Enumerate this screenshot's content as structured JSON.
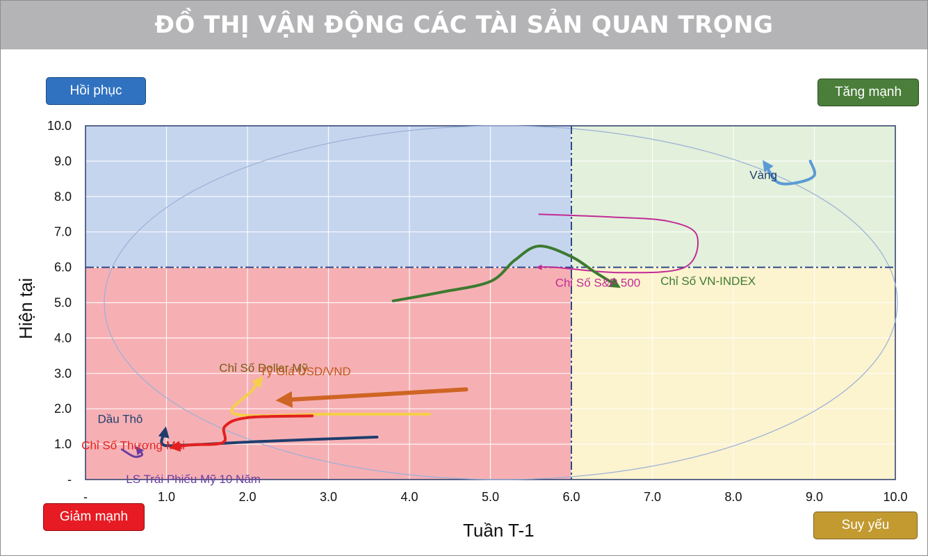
{
  "title": "ĐỒ THỊ VẬN ĐỘNG CÁC TÀI SẢN QUAN TRỌNG",
  "quadrant_labels": {
    "top_left": "Hồi phục",
    "top_right": "Tăng mạnh",
    "bottom_left": "Giảm mạnh",
    "bottom_right": "Suy yếu"
  },
  "colors": {
    "recovery": "#3072c0",
    "strong": "#4a7e3a",
    "weak_drop": "#e61b23",
    "weakening": "#c29a30",
    "q_recovery_bg": "#c6d5ee",
    "q_strong_bg": "#e3f0db",
    "q_drop_bg": "#f6b0b4",
    "q_weak_bg": "#fcf3cf"
  },
  "chart_data": {
    "type": "scatter",
    "xlabel": "Tuần T-1",
    "ylabel": "Hiện tại",
    "xlim": [
      0,
      10
    ],
    "ylim": [
      0,
      10
    ],
    "x_ticks": [
      "-",
      "1.0",
      "2.0",
      "3.0",
      "4.0",
      "5.0",
      "6.0",
      "7.0",
      "8.0",
      "9.0",
      "10.0"
    ],
    "y_ticks": [
      "-",
      "1.0",
      "2.0",
      "3.0",
      "4.0",
      "5.0",
      "6.0",
      "7.0",
      "8.0",
      "9.0",
      "10.0"
    ],
    "divider": {
      "x": 6.0,
      "y": 6.0
    },
    "grid": true,
    "series": [
      {
        "name": "Vàng",
        "color": "#5b9bd5",
        "label_pos": [
          8.2,
          8.5
        ],
        "points": [
          [
            8.95,
            9.0
          ],
          [
            9.0,
            8.6
          ],
          [
            8.8,
            8.4
          ],
          [
            8.55,
            8.4
          ],
          [
            8.4,
            8.9
          ]
        ]
      },
      {
        "name": "Chỉ Số S&P 500",
        "color": "#c02b96",
        "label_pos": [
          5.8,
          5.45
        ],
        "points": [
          [
            5.6,
            7.5
          ],
          [
            6.5,
            7.42
          ],
          [
            7.2,
            7.3
          ],
          [
            7.55,
            6.9
          ],
          [
            7.4,
            6.0
          ],
          [
            6.6,
            5.85
          ],
          [
            5.8,
            6.0
          ],
          [
            5.6,
            6.0
          ]
        ]
      },
      {
        "name": "Chỉ Số VN-INDEX",
        "color": "#3d7a30",
        "label_pos": [
          7.1,
          5.5
        ],
        "points": [
          [
            3.8,
            5.05
          ],
          [
            4.4,
            5.3
          ],
          [
            5.0,
            5.6
          ],
          [
            5.3,
            6.2
          ],
          [
            5.6,
            6.6
          ],
          [
            6.0,
            6.3
          ],
          [
            6.3,
            5.85
          ],
          [
            6.55,
            5.5
          ]
        ]
      },
      {
        "name": "Chỉ Số Dollar Mỹ",
        "color": "#f5cf4a",
        "label_pos": [
          1.65,
          3.05
        ],
        "points": [
          [
            4.25,
            1.85
          ],
          [
            3.0,
            1.85
          ],
          [
            1.85,
            1.85
          ],
          [
            2.05,
            2.5
          ],
          [
            2.15,
            2.8
          ]
        ]
      },
      {
        "name": "Tỷ Giá USD/VND",
        "color": "#cf6524",
        "label_pos": [
          2.15,
          2.95
        ],
        "points": [
          [
            4.7,
            2.55
          ],
          [
            3.6,
            2.4
          ],
          [
            2.45,
            2.25
          ]
        ]
      },
      {
        "name": "Dầu Thô",
        "color": "#1f3e6e",
        "label_pos": [
          0.15,
          1.6
        ],
        "points": [
          [
            3.6,
            1.2
          ],
          [
            2.2,
            1.08
          ],
          [
            1.2,
            0.97
          ],
          [
            0.95,
            1.0
          ],
          [
            0.98,
            1.35
          ]
        ]
      },
      {
        "name": "Chỉ Số Thương Mại",
        "color": "#e3201f",
        "label_pos": [
          -0.05,
          0.85
        ],
        "points": [
          [
            2.8,
            1.8
          ],
          [
            2.0,
            1.75
          ],
          [
            1.72,
            1.5
          ],
          [
            1.7,
            1.05
          ],
          [
            1.3,
            0.98
          ],
          [
            1.1,
            0.92
          ]
        ]
      },
      {
        "name": "LS Trái Phiếu Mỹ 10 Năm",
        "color": "#6a3da0",
        "label_pos": [
          0.5,
          -0.1
        ],
        "points": [
          [
            0.45,
            0.85
          ],
          [
            0.6,
            0.65
          ],
          [
            0.7,
            0.7
          ],
          [
            0.65,
            0.85
          ]
        ]
      }
    ]
  }
}
